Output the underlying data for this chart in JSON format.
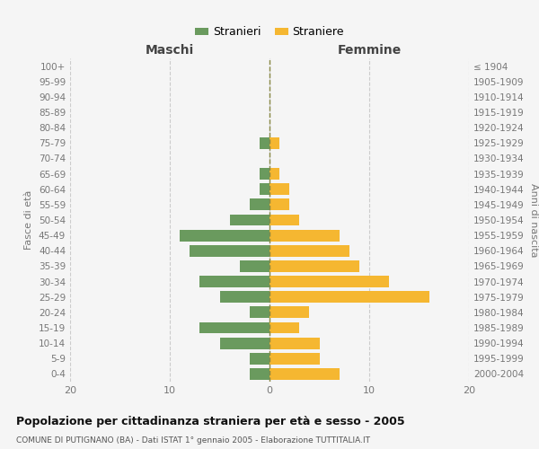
{
  "age_groups": [
    "100+",
    "95-99",
    "90-94",
    "85-89",
    "80-84",
    "75-79",
    "70-74",
    "65-69",
    "60-64",
    "55-59",
    "50-54",
    "45-49",
    "40-44",
    "35-39",
    "30-34",
    "25-29",
    "20-24",
    "15-19",
    "10-14",
    "5-9",
    "0-4"
  ],
  "birth_years": [
    "≤ 1904",
    "1905-1909",
    "1910-1914",
    "1915-1919",
    "1920-1924",
    "1925-1929",
    "1930-1934",
    "1935-1939",
    "1940-1944",
    "1945-1949",
    "1950-1954",
    "1955-1959",
    "1960-1964",
    "1965-1969",
    "1970-1974",
    "1975-1979",
    "1980-1984",
    "1985-1989",
    "1990-1994",
    "1995-1999",
    "2000-2004"
  ],
  "males": [
    0,
    0,
    0,
    0,
    0,
    1,
    0,
    1,
    1,
    2,
    4,
    9,
    8,
    3,
    7,
    5,
    2,
    7,
    5,
    2,
    2
  ],
  "females": [
    0,
    0,
    0,
    0,
    0,
    1,
    0,
    1,
    2,
    2,
    3,
    7,
    8,
    9,
    12,
    16,
    4,
    3,
    5,
    5,
    7
  ],
  "male_color": "#6a9a5e",
  "female_color": "#f5b731",
  "background_color": "#f5f5f5",
  "grid_color": "#cccccc",
  "title": "Popolazione per cittadinanza straniera per età e sesso - 2005",
  "subtitle": "COMUNE DI PUTIGNANO (BA) - Dati ISTAT 1° gennaio 2005 - Elaborazione TUTTITALIA.IT",
  "label_maschi": "Maschi",
  "label_femmine": "Femmine",
  "ylabel_left": "Fasce di età",
  "ylabel_right": "Anni di nascita",
  "legend_male": "Stranieri",
  "legend_female": "Straniere",
  "xlim": 20,
  "dashed_line_color": "#888844"
}
